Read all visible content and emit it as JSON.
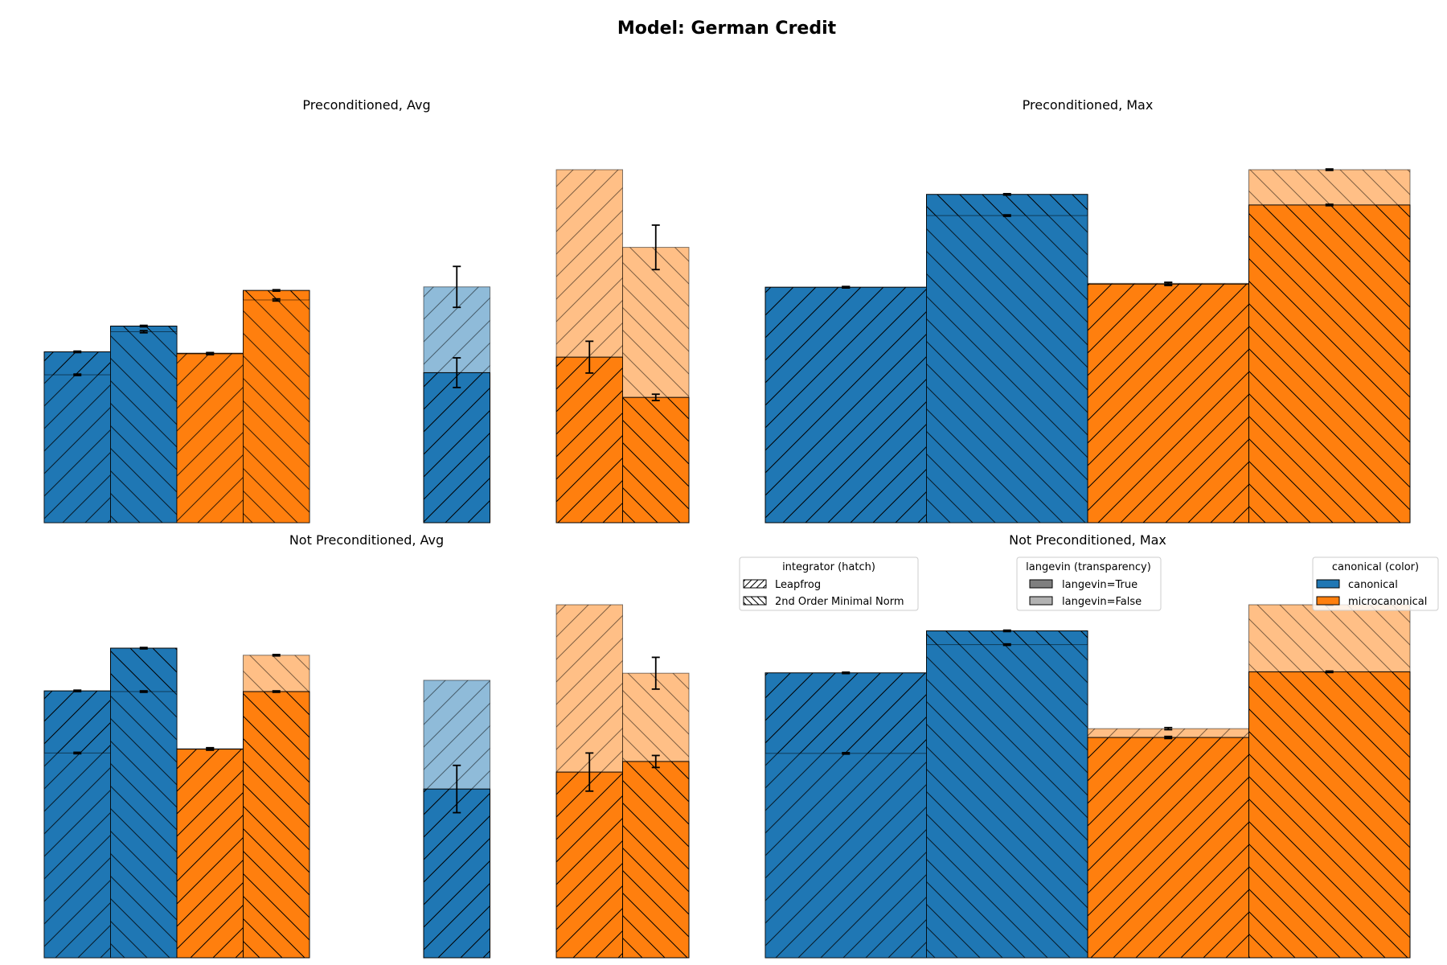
{
  "suptitle": "Model: German Credit",
  "colors": {
    "canonical": "#1f77b4",
    "microcanonical": "#ff7f0e"
  },
  "legends": {
    "hatch": {
      "title": "integrator (hatch)",
      "items": [
        "Leapfrog",
        "2nd Order Minimal Norm"
      ]
    },
    "alpha": {
      "title": "langevin (transparency)",
      "items": [
        "langevin=True",
        "langevin=False"
      ]
    },
    "color": {
      "title": "canonical (color)",
      "items": [
        "canonical",
        "microcanonical"
      ]
    }
  },
  "chart_data": [
    {
      "type": "bar",
      "title": "Preconditioned, Avg",
      "ylim": [
        0,
        100
      ],
      "axes_visible": false,
      "bars": [
        {
          "group": 0,
          "slot": 0,
          "canonical": true,
          "integrator": "Leapfrog",
          "true": 48.4,
          "true_err": 0.2,
          "false": 41.9,
          "false_err": 0.2
        },
        {
          "group": 0,
          "slot": 1,
          "canonical": true,
          "integrator": "2nd Order Minimal Norm",
          "true": 55.7,
          "true_err": 0.2,
          "false": 54.1,
          "false_err": 0.3
        },
        {
          "group": 0,
          "slot": 2,
          "canonical": false,
          "integrator": "Leapfrog",
          "true": 48.0,
          "true_err": 0.2,
          "false": 47.8,
          "false_err": 0.2
        },
        {
          "group": 0,
          "slot": 3,
          "canonical": false,
          "integrator": "2nd Order Minimal Norm",
          "true": 65.8,
          "true_err": 0.2,
          "false": 63.1,
          "false_err": 0.3
        },
        {
          "group": 1,
          "slot": 0,
          "canonical": true,
          "integrator": "Leapfrog",
          "true": 42.5,
          "true_err": 4.2,
          "false": 66.8,
          "false_err": 5.8
        },
        {
          "group": 2,
          "slot": 0,
          "canonical": false,
          "integrator": "Leapfrog",
          "true": 46.9,
          "true_err": 4.5,
          "false": 100.0,
          "false_err": 0
        },
        {
          "group": 2,
          "slot": 1,
          "canonical": false,
          "integrator": "2nd Order Minimal Norm",
          "true": 35.5,
          "true_err": 0.9,
          "false": 78.0,
          "false_err": 6.3
        }
      ]
    },
    {
      "type": "bar",
      "title": "Preconditioned, Max",
      "ylim": [
        0,
        100
      ],
      "axes_visible": false,
      "bars": [
        {
          "group": 0,
          "slot": 0,
          "canonical": true,
          "integrator": "Leapfrog",
          "true": 66.7,
          "true_err": 0.2,
          "false": 66.7,
          "false_err": 0.2
        },
        {
          "group": 0,
          "slot": 1,
          "canonical": true,
          "integrator": "2nd Order Minimal Norm",
          "true": 93.0,
          "true_err": 0.2,
          "false": 87.0,
          "false_err": 0.2
        },
        {
          "group": 0,
          "slot": 2,
          "canonical": false,
          "integrator": "Leapfrog",
          "true": 67.6,
          "true_err": 0.4,
          "false": 67.8,
          "false_err": 0.3
        },
        {
          "group": 0,
          "slot": 3,
          "canonical": false,
          "integrator": "2nd Order Minimal Norm",
          "true": 90.0,
          "true_err": 0.2,
          "false": 100.0,
          "false_err": 0.2
        }
      ]
    },
    {
      "type": "bar",
      "title": "Not Preconditioned, Avg",
      "ylim": [
        0,
        100
      ],
      "axes_visible": false,
      "bars": [
        {
          "group": 0,
          "slot": 0,
          "canonical": true,
          "integrator": "Leapfrog",
          "true": 75.6,
          "true_err": 0.2,
          "false": 58.0,
          "false_err": 0.2
        },
        {
          "group": 0,
          "slot": 1,
          "canonical": true,
          "integrator": "2nd Order Minimal Norm",
          "true": 87.7,
          "true_err": 0.2,
          "false": 75.4,
          "false_err": 0.2
        },
        {
          "group": 0,
          "slot": 2,
          "canonical": false,
          "integrator": "Leapfrog",
          "true": 59.1,
          "true_err": 0.3,
          "false": 59.2,
          "false_err": 0.3
        },
        {
          "group": 0,
          "slot": 3,
          "canonical": false,
          "integrator": "2nd Order Minimal Norm",
          "true": 75.4,
          "true_err": 0.2,
          "false": 85.7,
          "false_err": 0.2
        },
        {
          "group": 1,
          "slot": 0,
          "canonical": true,
          "integrator": "Leapfrog",
          "true": 47.8,
          "true_err": 6.7,
          "false": 78.6,
          "false_err": 0
        },
        {
          "group": 2,
          "slot": 0,
          "canonical": false,
          "integrator": "Leapfrog",
          "true": 52.6,
          "true_err": 5.4,
          "false": 100.0,
          "false_err": 0
        },
        {
          "group": 2,
          "slot": 1,
          "canonical": false,
          "integrator": "2nd Order Minimal Norm",
          "true": 55.6,
          "true_err": 1.7,
          "false": 80.6,
          "false_err": 4.5
        }
      ]
    },
    {
      "type": "bar",
      "title": "Not Preconditioned, Max",
      "ylim": [
        0,
        100
      ],
      "axes_visible": false,
      "bars": [
        {
          "group": 0,
          "slot": 0,
          "canonical": true,
          "integrator": "Leapfrog",
          "true": 80.7,
          "true_err": 0.2,
          "false": 57.9,
          "false_err": 0.2
        },
        {
          "group": 0,
          "slot": 1,
          "canonical": true,
          "integrator": "2nd Order Minimal Norm",
          "true": 92.6,
          "true_err": 0.2,
          "false": 88.7,
          "false_err": 0.2
        },
        {
          "group": 0,
          "slot": 2,
          "canonical": false,
          "integrator": "Leapfrog",
          "true": 62.4,
          "true_err": 0.3,
          "false": 64.9,
          "false_err": 0.3
        },
        {
          "group": 0,
          "slot": 3,
          "canonical": false,
          "integrator": "2nd Order Minimal Norm",
          "true": 81.0,
          "true_err": 0.2,
          "false": 100.0,
          "false_err": 0.2
        }
      ]
    }
  ]
}
